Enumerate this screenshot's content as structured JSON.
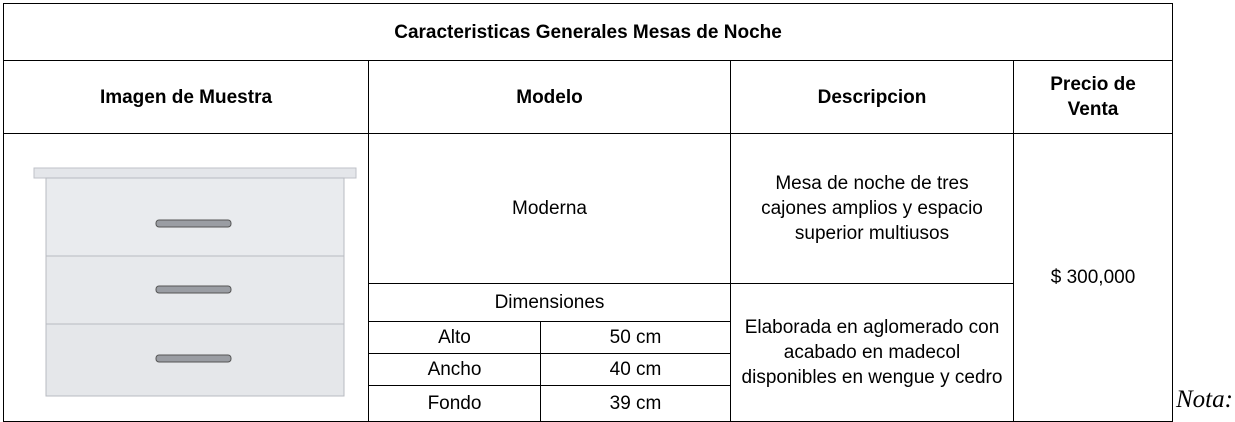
{
  "table": {
    "title": "Caracteristicas Generales Mesas de Noche",
    "headers": [
      "Imagen de Muestra",
      "Modelo",
      "Descripcion",
      "Precio de Venta"
    ],
    "model": "Moderna",
    "description": "Mesa de noche de tres cajones amplios y espacio superior multiusos",
    "dimensions_label": "Dimensiones",
    "dimensions": [
      [
        "Alto",
        "50 cm"
      ],
      [
        "Ancho",
        "40 cm"
      ],
      [
        "Fondo",
        "39 cm"
      ]
    ],
    "material": "Elaborada en aglomerado con acabado en madecol disponibles en wengue y cedro",
    "price": "$ 300,000"
  },
  "note": "Nota:"
}
